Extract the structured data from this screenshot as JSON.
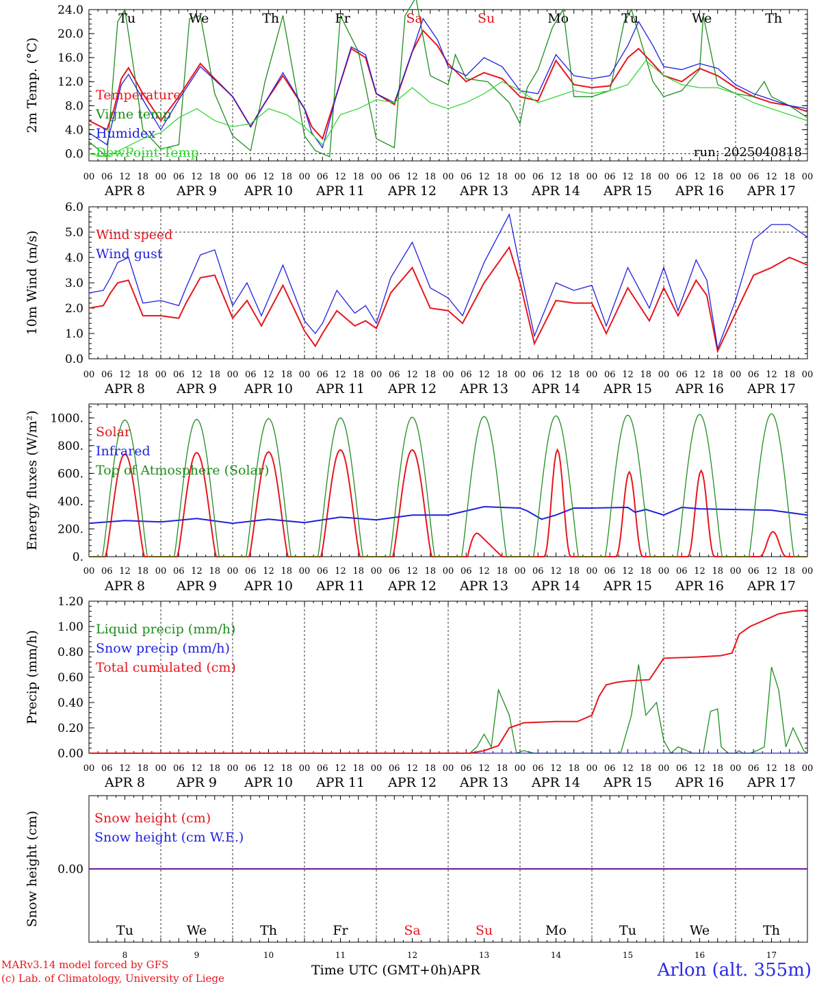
{
  "colors": {
    "red": "#e8141c",
    "green": "#1e8c1e",
    "blue": "#1e1ee0",
    "lightgreen": "#36d636",
    "black": "#000000"
  },
  "days": [
    {
      "dow": "Tu",
      "date": "APR  8",
      "num": "8",
      "weekend": false
    },
    {
      "dow": "We",
      "date": "APR  9",
      "num": "9",
      "weekend": false
    },
    {
      "dow": "Th",
      "date": "APR 10",
      "num": "10",
      "weekend": false
    },
    {
      "dow": "Fr",
      "date": "APR 11",
      "num": "11",
      "weekend": false
    },
    {
      "dow": "Sa",
      "date": "APR 12",
      "num": "12",
      "weekend": true
    },
    {
      "dow": "Su",
      "date": "APR 13",
      "num": "13",
      "weekend": true
    },
    {
      "dow": "Mo",
      "date": "APR 14",
      "num": "14",
      "weekend": false
    },
    {
      "dow": "Tu",
      "date": "APR 15",
      "num": "15",
      "weekend": false
    },
    {
      "dow": "We",
      "date": "APR 16",
      "num": "16",
      "weekend": false
    },
    {
      "dow": "Th",
      "date": "APR 17",
      "num": "17",
      "weekend": false
    }
  ],
  "hour_ticks": [
    "00",
    "06",
    "12",
    "18"
  ],
  "last_hour_tick": "00",
  "footer": {
    "credit_line1": "MARv3.14 model forced by GFS",
    "credit_line2": "(c) Lab. of Climatology, University of Liege",
    "time_axis_label": "Time UTC (GMT+0h)",
    "month_label": "APR",
    "station": "Arlon (alt. 355m)"
  },
  "chart_data": [
    {
      "type": "line",
      "ylabel": "2m Temp. (°C)",
      "ylim": [
        -1.2,
        24
      ],
      "yticks": [
        "0.0",
        "4.0",
        "8.0",
        "12.0",
        "16.0",
        "20.0",
        "24.0"
      ],
      "ytick_values": [
        0,
        4,
        8,
        12,
        16,
        20,
        24
      ],
      "reference_line": 0,
      "annotation": "run: 2025040818",
      "x_unit": "days since APR 8 00 UTC",
      "series": [
        {
          "name": "Temperature",
          "color": "red",
          "x": [
            0,
            0.25,
            0.35,
            0.45,
            0.55,
            0.75,
            1,
            1.25,
            1.55,
            1.75,
            2,
            2.25,
            2.45,
            2.7,
            3,
            3.1,
            3.25,
            3.45,
            3.65,
            3.85,
            4,
            4.25,
            4.5,
            4.65,
            4.85,
            5,
            5.25,
            5.5,
            5.75,
            6,
            6.25,
            6.5,
            6.75,
            7,
            7.25,
            7.5,
            7.65,
            7.85,
            8,
            8.25,
            8.5,
            8.75,
            9,
            9.25,
            9.5,
            9.75,
            10
          ],
          "values": [
            5.5,
            4.0,
            7.5,
            12.5,
            14.3,
            10,
            5.5,
            9.5,
            15,
            12.5,
            9.5,
            4.5,
            8.5,
            13,
            7.5,
            4.5,
            2.5,
            10,
            17.5,
            16,
            10,
            8.2,
            17,
            20.5,
            18,
            15,
            12,
            13.5,
            12.5,
            9.5,
            8.8,
            15.5,
            11.5,
            11,
            11.3,
            16,
            17.5,
            15,
            13,
            12,
            14.2,
            13,
            11,
            9.5,
            8.5,
            8,
            7
          ]
        },
        {
          "name": "Vigne temp",
          "color": "green",
          "x": [
            0,
            0.25,
            0.4,
            0.5,
            0.55,
            0.75,
            1,
            1.25,
            1.4,
            1.55,
            1.75,
            2,
            2.25,
            2.45,
            2.7,
            3,
            3.15,
            3.35,
            3.5,
            3.75,
            4,
            4.25,
            4.4,
            4.55,
            4.75,
            5,
            5.1,
            5.25,
            5.55,
            5.85,
            6,
            6.1,
            6.25,
            6.45,
            6.6,
            6.75,
            7,
            7.25,
            7.45,
            7.55,
            7.85,
            8,
            8.25,
            8.5,
            8.55,
            8.75,
            9,
            9.25,
            9.4,
            9.5,
            9.75,
            10
          ],
          "values": [
            2,
            -0.5,
            22,
            24,
            20,
            4,
            0.8,
            1.5,
            22.5,
            23,
            10,
            3,
            0.5,
            12,
            23,
            3,
            0.5,
            -0.5,
            23,
            17,
            2.5,
            1.0,
            23,
            26,
            13,
            11.5,
            16.5,
            12.5,
            12,
            8.5,
            5,
            11,
            14,
            21,
            24,
            9.5,
            9.5,
            10.5,
            22,
            24,
            12,
            9.5,
            10.5,
            14,
            23,
            11.5,
            10,
            9.5,
            12,
            9.5,
            8,
            6
          ]
        },
        {
          "name": "Humidex",
          "color": "blue",
          "x": [
            0,
            0.25,
            0.35,
            0.45,
            0.55,
            0.75,
            1,
            1.25,
            1.55,
            1.75,
            2,
            2.25,
            2.45,
            2.7,
            3,
            3.1,
            3.25,
            3.45,
            3.65,
            3.85,
            4,
            4.25,
            4.5,
            4.65,
            4.85,
            5,
            5.25,
            5.5,
            5.75,
            6,
            6.25,
            6.5,
            6.75,
            7,
            7.25,
            7.5,
            7.65,
            7.85,
            8,
            8.25,
            8.5,
            8.75,
            9,
            9.25,
            9.5,
            9.75,
            10
          ],
          "values": [
            3.5,
            1.5,
            6.5,
            11.5,
            13.2,
            9,
            4.0,
            9,
            14.5,
            12.3,
            9.5,
            4.5,
            8.5,
            13.5,
            7.5,
            3.5,
            1.0,
            10,
            17.8,
            16.5,
            10,
            8.5,
            17,
            22.5,
            19,
            14.5,
            13,
            16,
            14.5,
            10.5,
            10,
            16.5,
            13,
            12.5,
            13,
            18,
            22,
            18,
            14.5,
            14,
            15,
            14.2,
            11.5,
            10,
            9,
            8,
            7.5
          ]
        },
        {
          "name": "DewPoint Temp",
          "color": "lightgreen",
          "x": [
            0,
            0.25,
            0.5,
            0.75,
            1,
            1.25,
            1.5,
            1.75,
            2,
            2.25,
            2.5,
            2.75,
            3,
            3.25,
            3.5,
            3.75,
            4,
            4.25,
            4.5,
            4.75,
            5,
            5.25,
            5.5,
            5.75,
            6,
            6.25,
            6.5,
            6.75,
            7,
            7.25,
            7.5,
            7.75,
            8,
            8.25,
            8.5,
            8.75,
            9,
            9.25,
            9.5,
            9.75,
            10
          ],
          "values": [
            0,
            -0.5,
            1,
            2.5,
            3.5,
            6,
            7.5,
            5.5,
            4.5,
            5,
            7.5,
            6.5,
            4.5,
            1.5,
            6.5,
            7.5,
            9,
            8.5,
            11,
            8.5,
            7.5,
            8.5,
            10,
            12,
            10.5,
            8.5,
            9.5,
            10.5,
            10,
            10.5,
            11.5,
            15.5,
            13,
            11.5,
            11,
            11,
            10,
            8.5,
            7.5,
            6.5,
            5.5
          ]
        }
      ]
    },
    {
      "type": "line",
      "ylabel": "10m Wind (m/s)",
      "ylim": [
        0,
        6
      ],
      "yticks": [
        "0.0",
        "1.0",
        "2.0",
        "3.0",
        "4.0",
        "5.0",
        "6.0"
      ],
      "ytick_values": [
        0,
        1,
        2,
        3,
        4,
        5,
        6
      ],
      "reference_line": 5,
      "x_unit": "days since APR 8 00 UTC",
      "series": [
        {
          "name": "Wind speed",
          "color": "red",
          "x": [
            0,
            0.2,
            0.3,
            0.4,
            0.55,
            0.75,
            1,
            1.25,
            1.35,
            1.55,
            1.75,
            2,
            2.2,
            2.4,
            2.7,
            3,
            3.15,
            3.25,
            3.45,
            3.7,
            3.85,
            4,
            4.2,
            4.5,
            4.75,
            5,
            5.2,
            5.5,
            5.85,
            6,
            6.2,
            6.5,
            6.75,
            7,
            7.2,
            7.5,
            7.8,
            8,
            8.2,
            8.45,
            8.6,
            8.75,
            9,
            9.25,
            9.5,
            9.75,
            10
          ],
          "values": [
            2.0,
            2.1,
            2.6,
            3.0,
            3.1,
            1.7,
            1.7,
            1.6,
            2.2,
            3.2,
            3.3,
            1.6,
            2.3,
            1.3,
            2.9,
            1.1,
            0.5,
            1.0,
            1.9,
            1.3,
            1.5,
            1.2,
            2.6,
            3.6,
            2.0,
            1.9,
            1.4,
            3.0,
            4.4,
            3.0,
            0.6,
            2.3,
            2.2,
            2.2,
            1.0,
            2.8,
            1.5,
            2.8,
            1.7,
            3.1,
            2.5,
            0.3,
            1.8,
            3.3,
            3.6,
            4.0,
            3.7
          ]
        },
        {
          "name": "Wind gust",
          "color": "blue",
          "x": [
            0,
            0.2,
            0.3,
            0.4,
            0.55,
            0.75,
            1,
            1.25,
            1.35,
            1.55,
            1.75,
            2,
            2.2,
            2.4,
            2.7,
            3,
            3.15,
            3.25,
            3.45,
            3.7,
            3.85,
            4,
            4.2,
            4.5,
            4.75,
            5,
            5.2,
            5.5,
            5.85,
            6,
            6.2,
            6.5,
            6.75,
            7,
            7.2,
            7.5,
            7.8,
            8,
            8.2,
            8.45,
            8.6,
            8.75,
            9,
            9.25,
            9.5,
            9.75,
            10
          ],
          "values": [
            2.6,
            2.7,
            3.2,
            3.8,
            4.0,
            2.2,
            2.3,
            2.1,
            2.8,
            4.1,
            4.3,
            2.1,
            3.0,
            1.7,
            3.7,
            1.5,
            1.0,
            1.4,
            2.7,
            1.8,
            2.1,
            1.4,
            3.2,
            4.6,
            2.8,
            2.4,
            1.7,
            3.8,
            5.7,
            3.6,
            0.9,
            3.0,
            2.7,
            2.9,
            1.3,
            3.6,
            2.0,
            3.6,
            1.9,
            3.9,
            3.1,
            0.4,
            2.3,
            4.7,
            5.3,
            5.3,
            4.8
          ]
        }
      ]
    },
    {
      "type": "line",
      "ylabel": "Energy fluxes (W/m²)",
      "ylim": [
        0,
        1100
      ],
      "yticks": [
        "0.",
        "200.",
        "400.",
        "600.",
        "800.",
        "1000."
      ],
      "ytick_values": [
        0,
        200,
        400,
        600,
        800,
        1000
      ],
      "x_unit": "days since APR 8 00 UTC",
      "series": [
        {
          "name": "Solar",
          "color": "red",
          "peaks": [
            740,
            750,
            755,
            770,
            770,
            220,
            770,
            610,
            620,
            180
          ],
          "shapes": [
            "full",
            "full",
            "full",
            "full",
            "full",
            "morning",
            "narrow",
            "narrow",
            "narrow",
            "narrow"
          ]
        },
        {
          "name": "Infrared",
          "color": "blue",
          "x": [
            0,
            0.5,
            1,
            1.5,
            2,
            2.5,
            3,
            3.5,
            4,
            4.5,
            5,
            5.5,
            6,
            6.1,
            6.2,
            6.3,
            6.5,
            6.75,
            7,
            7.5,
            7.6,
            7.75,
            8,
            8.25,
            8.5,
            9,
            9.5,
            10
          ],
          "values": [
            240,
            260,
            250,
            275,
            240,
            270,
            245,
            285,
            265,
            300,
            300,
            360,
            350,
            330,
            300,
            270,
            300,
            350,
            350,
            355,
            320,
            340,
            300,
            355,
            345,
            340,
            335,
            300
          ]
        },
        {
          "name": "Top of Atmosphere (Solar)",
          "color": "green",
          "peaks": [
            985,
            990,
            995,
            1000,
            1005,
            1010,
            1015,
            1020,
            1025,
            1030
          ],
          "shapes": [
            "toa",
            "toa",
            "toa",
            "toa",
            "toa",
            "toa",
            "toa",
            "toa",
            "toa",
            "toa"
          ]
        }
      ]
    },
    {
      "type": "line",
      "ylabel": "Precip (mm/h)",
      "ylim": [
        0,
        1.2
      ],
      "yticks": [
        "0.00",
        "0.20",
        "0.40",
        "0.60",
        "0.80",
        "1.00",
        "1.20"
      ],
      "ytick_values": [
        0,
        0.2,
        0.4,
        0.6,
        0.8,
        1.0,
        1.2
      ],
      "x_unit": "days since APR 8 00 UTC",
      "series": [
        {
          "name": "Liquid precip (mm/h)",
          "color": "green",
          "x": [
            0,
            5.3,
            5.4,
            5.5,
            5.6,
            5.7,
            5.85,
            5.95,
            6.05,
            6.2,
            7.4,
            7.55,
            7.65,
            7.75,
            7.9,
            8.0,
            8.1,
            8.2,
            8.4,
            8.55,
            8.65,
            8.75,
            8.8,
            8.9,
            9.0,
            9.05,
            9.1,
            9.2,
            9.3,
            9.4,
            9.5,
            9.6,
            9.7,
            9.8,
            9.95,
            10
          ],
          "values": [
            0,
            0,
            0.05,
            0.15,
            0.05,
            0.5,
            0.3,
            0,
            0.02,
            0,
            0,
            0.3,
            0.7,
            0.3,
            0.4,
            0.1,
            0,
            0.05,
            0,
            0,
            0.33,
            0.35,
            0.05,
            0,
            0,
            0.02,
            0,
            0,
            0.02,
            0.05,
            0.68,
            0.5,
            0.05,
            0.2,
            0.02,
            0
          ]
        },
        {
          "name": "Snow precip (mm/h)",
          "color": "blue",
          "x": [
            0,
            10
          ],
          "values": [
            0,
            0
          ]
        },
        {
          "name": "Total cumulated (cm)",
          "color": "red",
          "x": [
            0,
            5.3,
            5.5,
            5.7,
            5.85,
            6.05,
            6.5,
            6.8,
            7.0,
            7.1,
            7.2,
            7.35,
            7.5,
            7.8,
            8.0,
            8.5,
            8.8,
            8.95,
            9.05,
            9.2,
            9.4,
            9.6,
            9.8,
            10
          ],
          "values": [
            0,
            0,
            0.02,
            0.06,
            0.2,
            0.24,
            0.25,
            0.25,
            0.3,
            0.45,
            0.54,
            0.56,
            0.57,
            0.58,
            0.75,
            0.76,
            0.77,
            0.79,
            0.94,
            1.0,
            1.05,
            1.1,
            1.12,
            1.13
          ]
        }
      ]
    },
    {
      "type": "line",
      "ylabel": "Snow height (cm)",
      "ylim": [
        -1,
        1
      ],
      "yticks": [
        "0.00"
      ],
      "ytick_values": [
        0
      ],
      "x_unit": "days since APR 8 00 UTC",
      "series": [
        {
          "name": "Snow height (cm)",
          "color": "red",
          "x": [
            0,
            10
          ],
          "values": [
            0,
            0
          ]
        },
        {
          "name": "Snow height (cm W.E.)",
          "color": "blue",
          "x": [
            0,
            10
          ],
          "values": [
            0,
            0
          ]
        }
      ]
    }
  ]
}
